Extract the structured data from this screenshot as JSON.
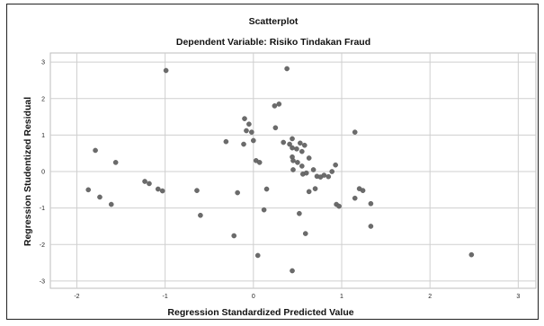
{
  "chart_data": {
    "type": "scatter",
    "title": "Scatterplot",
    "subtitle": "Dependent Variable: Risiko Tindakan Fraud",
    "xlabel": "Regression Standardized Predicted Value",
    "ylabel": "Regression Studentized Residual",
    "xlim": [
      -2.3,
      3.2
    ],
    "ylim": [
      -3.2,
      3.25
    ],
    "xticks": [
      -2,
      -1,
      0,
      1,
      2,
      3
    ],
    "yticks": [
      -3,
      -2,
      -1,
      0,
      1,
      2,
      3
    ],
    "grid": true,
    "point_color": "#6b6b6b",
    "grid_color": "#cfcfcf",
    "points": [
      {
        "x": -1.87,
        "y": -0.5
      },
      {
        "x": -1.79,
        "y": 0.58
      },
      {
        "x": -1.74,
        "y": -0.7
      },
      {
        "x": -1.61,
        "y": -0.9
      },
      {
        "x": -1.56,
        "y": 0.25
      },
      {
        "x": -1.23,
        "y": -0.27
      },
      {
        "x": -1.18,
        "y": -0.33
      },
      {
        "x": -1.08,
        "y": -0.48
      },
      {
        "x": -1.03,
        "y": -0.53
      },
      {
        "x": -0.99,
        "y": 2.77
      },
      {
        "x": -0.64,
        "y": -0.52
      },
      {
        "x": -0.6,
        "y": -1.2
      },
      {
        "x": -0.31,
        "y": 0.82
      },
      {
        "x": -0.22,
        "y": -1.76
      },
      {
        "x": -0.18,
        "y": -0.58
      },
      {
        "x": -0.1,
        "y": 1.45
      },
      {
        "x": -0.11,
        "y": 0.75
      },
      {
        "x": -0.08,
        "y": 1.12
      },
      {
        "x": -0.05,
        "y": 1.3
      },
      {
        "x": -0.02,
        "y": 1.08
      },
      {
        "x": 0.0,
        "y": 0.85
      },
      {
        "x": 0.03,
        "y": 0.3
      },
      {
        "x": 0.07,
        "y": 0.25
      },
      {
        "x": 0.05,
        "y": -2.3
      },
      {
        "x": 0.12,
        "y": -1.05
      },
      {
        "x": 0.15,
        "y": -0.48
      },
      {
        "x": 0.24,
        "y": 1.8
      },
      {
        "x": 0.25,
        "y": 1.2
      },
      {
        "x": 0.29,
        "y": 1.85
      },
      {
        "x": 0.34,
        "y": 0.8
      },
      {
        "x": 0.38,
        "y": 2.82
      },
      {
        "x": 0.41,
        "y": 0.75
      },
      {
        "x": 0.44,
        "y": 0.9
      },
      {
        "x": 0.44,
        "y": 0.65
      },
      {
        "x": 0.44,
        "y": 0.4
      },
      {
        "x": 0.45,
        "y": 0.3
      },
      {
        "x": 0.45,
        "y": 0.05
      },
      {
        "x": 0.44,
        "y": -2.72
      },
      {
        "x": 0.49,
        "y": 0.62
      },
      {
        "x": 0.5,
        "y": 0.25
      },
      {
        "x": 0.52,
        "y": -1.15
      },
      {
        "x": 0.53,
        "y": 0.78
      },
      {
        "x": 0.55,
        "y": 0.55
      },
      {
        "x": 0.55,
        "y": 0.15
      },
      {
        "x": 0.56,
        "y": -0.07
      },
      {
        "x": 0.58,
        "y": 0.72
      },
      {
        "x": 0.59,
        "y": -1.7
      },
      {
        "x": 0.6,
        "y": -0.04
      },
      {
        "x": 0.63,
        "y": 0.37
      },
      {
        "x": 0.63,
        "y": -0.55
      },
      {
        "x": 0.68,
        "y": 0.05
      },
      {
        "x": 0.7,
        "y": -0.47
      },
      {
        "x": 0.72,
        "y": -0.13
      },
      {
        "x": 0.76,
        "y": -0.15
      },
      {
        "x": 0.8,
        "y": -0.1
      },
      {
        "x": 0.85,
        "y": -0.14
      },
      {
        "x": 0.89,
        "y": 0.0
      },
      {
        "x": 0.93,
        "y": 0.18
      },
      {
        "x": 0.94,
        "y": -0.9
      },
      {
        "x": 0.97,
        "y": -0.95
      },
      {
        "x": 1.15,
        "y": 1.08
      },
      {
        "x": 1.15,
        "y": -0.73
      },
      {
        "x": 1.2,
        "y": -0.47
      },
      {
        "x": 1.24,
        "y": -0.52
      },
      {
        "x": 1.33,
        "y": -0.88
      },
      {
        "x": 1.33,
        "y": -1.5
      },
      {
        "x": 2.47,
        "y": -2.28
      }
    ]
  }
}
